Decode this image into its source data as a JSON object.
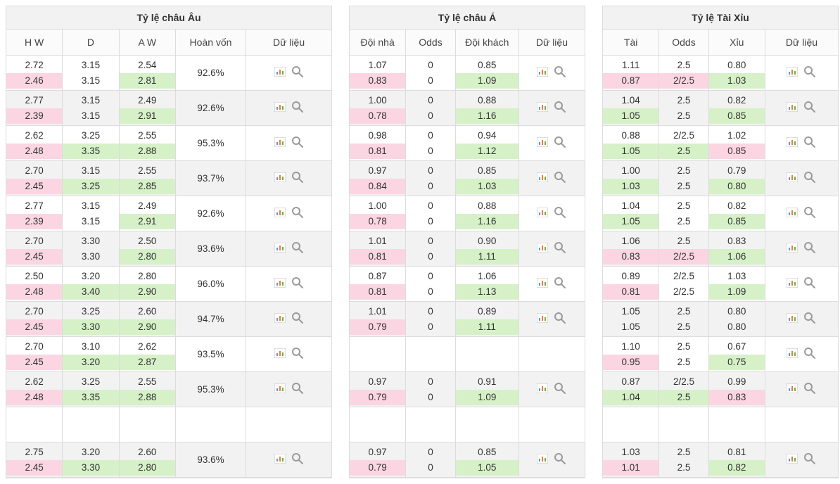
{
  "colors": {
    "border": "#dcdcdc",
    "alt_row": "#f2f2f2",
    "header_bg": "#fbfbfb",
    "text": "#333333",
    "hl_down": "#fbd6e2",
    "hl_up": "#d6f1c8"
  },
  "icons": {
    "chart_name": "chart-icon",
    "search_name": "search-icon"
  },
  "eu": {
    "title": "Tỷ lệ châu Âu",
    "headers": [
      "H W",
      "D",
      "A W",
      "Hoàn vốn",
      "Dữ liệu"
    ],
    "rows": [
      {
        "hw": [
          "2.72",
          "2.46"
        ],
        "hw_hl": [
          "",
          "down"
        ],
        "d": [
          "3.15",
          "3.15"
        ],
        "d_hl": [
          "",
          ""
        ],
        "aw": [
          "2.54",
          "2.81"
        ],
        "aw_hl": [
          "",
          "up"
        ],
        "ret": "92.6%"
      },
      {
        "hw": [
          "2.77",
          "2.39"
        ],
        "hw_hl": [
          "",
          "down"
        ],
        "d": [
          "3.15",
          "3.15"
        ],
        "d_hl": [
          "",
          ""
        ],
        "aw": [
          "2.49",
          "2.91"
        ],
        "aw_hl": [
          "",
          "up"
        ],
        "ret": "92.6%"
      },
      {
        "hw": [
          "2.62",
          "2.48"
        ],
        "hw_hl": [
          "",
          "down"
        ],
        "d": [
          "3.25",
          "3.35"
        ],
        "d_hl": [
          "",
          "up"
        ],
        "aw": [
          "2.55",
          "2.88"
        ],
        "aw_hl": [
          "",
          "up"
        ],
        "ret": "95.3%"
      },
      {
        "hw": [
          "2.70",
          "2.45"
        ],
        "hw_hl": [
          "",
          "down"
        ],
        "d": [
          "3.15",
          "3.25"
        ],
        "d_hl": [
          "",
          "up"
        ],
        "aw": [
          "2.55",
          "2.85"
        ],
        "aw_hl": [
          "",
          "up"
        ],
        "ret": "93.7%"
      },
      {
        "hw": [
          "2.77",
          "2.39"
        ],
        "hw_hl": [
          "",
          "down"
        ],
        "d": [
          "3.15",
          "3.15"
        ],
        "d_hl": [
          "",
          ""
        ],
        "aw": [
          "2.49",
          "2.91"
        ],
        "aw_hl": [
          "",
          "up"
        ],
        "ret": "92.6%"
      },
      {
        "hw": [
          "2.70",
          "2.45"
        ],
        "hw_hl": [
          "",
          "down"
        ],
        "d": [
          "3.30",
          "3.30"
        ],
        "d_hl": [
          "",
          ""
        ],
        "aw": [
          "2.50",
          "2.80"
        ],
        "aw_hl": [
          "",
          "up"
        ],
        "ret": "93.6%"
      },
      {
        "hw": [
          "2.50",
          "2.48"
        ],
        "hw_hl": [
          "",
          "down"
        ],
        "d": [
          "3.20",
          "3.40"
        ],
        "d_hl": [
          "",
          "up"
        ],
        "aw": [
          "2.80",
          "2.90"
        ],
        "aw_hl": [
          "",
          "up"
        ],
        "ret": "96.0%"
      },
      {
        "hw": [
          "2.70",
          "2.45"
        ],
        "hw_hl": [
          "",
          "down"
        ],
        "d": [
          "3.25",
          "3.30"
        ],
        "d_hl": [
          "",
          "up"
        ],
        "aw": [
          "2.60",
          "2.90"
        ],
        "aw_hl": [
          "",
          "up"
        ],
        "ret": "94.7%"
      },
      {
        "hw": [
          "2.70",
          "2.45"
        ],
        "hw_hl": [
          "",
          "down"
        ],
        "d": [
          "3.10",
          "3.20"
        ],
        "d_hl": [
          "",
          "up"
        ],
        "aw": [
          "2.62",
          "2.87"
        ],
        "aw_hl": [
          "",
          "up"
        ],
        "ret": "93.5%"
      },
      {
        "hw": [
          "2.62",
          "2.48"
        ],
        "hw_hl": [
          "",
          "down"
        ],
        "d": [
          "3.25",
          "3.35"
        ],
        "d_hl": [
          "",
          "up"
        ],
        "aw": [
          "2.55",
          "2.88"
        ],
        "aw_hl": [
          "",
          "up"
        ],
        "ret": "95.3%"
      },
      {
        "empty": true
      },
      {
        "hw": [
          "2.75",
          "2.45"
        ],
        "hw_hl": [
          "",
          "down"
        ],
        "d": [
          "3.20",
          "3.30"
        ],
        "d_hl": [
          "",
          "up"
        ],
        "aw": [
          "2.60",
          "2.80"
        ],
        "aw_hl": [
          "",
          "up"
        ],
        "ret": "93.6%"
      }
    ]
  },
  "asia": {
    "title": "Tỷ lệ châu Á",
    "headers": [
      "Đội nhà",
      "Odds",
      "Đội khách",
      "Dữ liệu"
    ],
    "rows": [
      {
        "h": [
          "1.07",
          "0.83"
        ],
        "h_hl": [
          "",
          "down"
        ],
        "o": [
          "0",
          "0"
        ],
        "o_hl": [
          "",
          ""
        ],
        "a": [
          "0.85",
          "1.09"
        ],
        "a_hl": [
          "",
          "up"
        ]
      },
      {
        "h": [
          "1.00",
          "0.78"
        ],
        "h_hl": [
          "",
          "down"
        ],
        "o": [
          "0",
          "0"
        ],
        "o_hl": [
          "",
          ""
        ],
        "a": [
          "0.88",
          "1.16"
        ],
        "a_hl": [
          "",
          "up"
        ]
      },
      {
        "h": [
          "0.98",
          "0.81"
        ],
        "h_hl": [
          "",
          "down"
        ],
        "o": [
          "0",
          "0"
        ],
        "o_hl": [
          "",
          ""
        ],
        "a": [
          "0.94",
          "1.12"
        ],
        "a_hl": [
          "",
          "up"
        ]
      },
      {
        "h": [
          "0.97",
          "0.84"
        ],
        "h_hl": [
          "",
          "down"
        ],
        "o": [
          "0",
          "0"
        ],
        "o_hl": [
          "",
          ""
        ],
        "a": [
          "0.85",
          "1.03"
        ],
        "a_hl": [
          "",
          "up"
        ]
      },
      {
        "h": [
          "1.00",
          "0.78"
        ],
        "h_hl": [
          "",
          "down"
        ],
        "o": [
          "0",
          "0"
        ],
        "o_hl": [
          "",
          ""
        ],
        "a": [
          "0.88",
          "1.16"
        ],
        "a_hl": [
          "",
          "up"
        ]
      },
      {
        "h": [
          "1.01",
          "0.81"
        ],
        "h_hl": [
          "",
          "down"
        ],
        "o": [
          "0",
          "0"
        ],
        "o_hl": [
          "",
          ""
        ],
        "a": [
          "0.90",
          "1.11"
        ],
        "a_hl": [
          "",
          "up"
        ]
      },
      {
        "h": [
          "0.87",
          "0.81"
        ],
        "h_hl": [
          "",
          "down"
        ],
        "o": [
          "0",
          "0"
        ],
        "o_hl": [
          "",
          ""
        ],
        "a": [
          "1.06",
          "1.13"
        ],
        "a_hl": [
          "",
          "up"
        ]
      },
      {
        "h": [
          "1.01",
          "0.79"
        ],
        "h_hl": [
          "",
          "down"
        ],
        "o": [
          "0",
          "0"
        ],
        "o_hl": [
          "",
          ""
        ],
        "a": [
          "0.89",
          "1.11"
        ],
        "a_hl": [
          "",
          "up"
        ]
      },
      {
        "empty": true
      },
      {
        "h": [
          "0.97",
          "0.79"
        ],
        "h_hl": [
          "",
          "down"
        ],
        "o": [
          "0",
          "0"
        ],
        "o_hl": [
          "",
          ""
        ],
        "a": [
          "0.91",
          "1.09"
        ],
        "a_hl": [
          "",
          "up"
        ]
      },
      {
        "empty": true
      },
      {
        "h": [
          "0.97",
          "0.79"
        ],
        "h_hl": [
          "",
          "down"
        ],
        "o": [
          "0",
          "0"
        ],
        "o_hl": [
          "",
          ""
        ],
        "a": [
          "0.85",
          "1.05"
        ],
        "a_hl": [
          "",
          "up"
        ]
      }
    ]
  },
  "ou": {
    "title": "Tỷ lệ Tài Xỉu",
    "headers": [
      "Tài",
      "Odds",
      "Xỉu",
      "Dữ liệu"
    ],
    "rows": [
      {
        "t": [
          "1.11",
          "0.87"
        ],
        "t_hl": [
          "",
          "down"
        ],
        "o": [
          "2.5",
          "2/2.5"
        ],
        "o_hl": [
          "",
          "down"
        ],
        "x": [
          "0.80",
          "1.03"
        ],
        "x_hl": [
          "",
          "up"
        ]
      },
      {
        "t": [
          "1.04",
          "1.05"
        ],
        "t_hl": [
          "",
          "up"
        ],
        "o": [
          "2.5",
          "2.5"
        ],
        "o_hl": [
          "",
          ""
        ],
        "x": [
          "0.82",
          "0.85"
        ],
        "x_hl": [
          "",
          "up"
        ]
      },
      {
        "t": [
          "0.88",
          "1.05"
        ],
        "t_hl": [
          "",
          "up"
        ],
        "o": [
          "2/2.5",
          "2.5"
        ],
        "o_hl": [
          "",
          "up"
        ],
        "x": [
          "1.02",
          "0.85"
        ],
        "x_hl": [
          "",
          "down"
        ]
      },
      {
        "t": [
          "1.00",
          "1.03"
        ],
        "t_hl": [
          "",
          "up"
        ],
        "o": [
          "2.5",
          "2.5"
        ],
        "o_hl": [
          "",
          ""
        ],
        "x": [
          "0.79",
          "0.80"
        ],
        "x_hl": [
          "",
          "up"
        ]
      },
      {
        "t": [
          "1.04",
          "1.05"
        ],
        "t_hl": [
          "",
          "up"
        ],
        "o": [
          "2.5",
          "2.5"
        ],
        "o_hl": [
          "",
          ""
        ],
        "x": [
          "0.82",
          "0.85"
        ],
        "x_hl": [
          "",
          "up"
        ]
      },
      {
        "t": [
          "1.06",
          "0.83"
        ],
        "t_hl": [
          "",
          "down"
        ],
        "o": [
          "2.5",
          "2/2.5"
        ],
        "o_hl": [
          "",
          "down"
        ],
        "x": [
          "0.83",
          "1.06"
        ],
        "x_hl": [
          "",
          "up"
        ]
      },
      {
        "t": [
          "0.89",
          "0.81"
        ],
        "t_hl": [
          "",
          "down"
        ],
        "o": [
          "2/2.5",
          "2/2.5"
        ],
        "o_hl": [
          "",
          ""
        ],
        "x": [
          "1.03",
          "1.09"
        ],
        "x_hl": [
          "",
          "up"
        ]
      },
      {
        "t": [
          "1.05",
          "1.05"
        ],
        "t_hl": [
          "",
          ""
        ],
        "o": [
          "2.5",
          "2.5"
        ],
        "o_hl": [
          "",
          ""
        ],
        "x": [
          "0.80",
          "0.80"
        ],
        "x_hl": [
          "",
          ""
        ]
      },
      {
        "t": [
          "1.10",
          "0.95"
        ],
        "t_hl": [
          "",
          "down"
        ],
        "o": [
          "2.5",
          "2.5"
        ],
        "o_hl": [
          "",
          ""
        ],
        "x": [
          "0.67",
          "0.75"
        ],
        "x_hl": [
          "",
          "up"
        ]
      },
      {
        "t": [
          "0.87",
          "1.04"
        ],
        "t_hl": [
          "",
          "up"
        ],
        "o": [
          "2/2.5",
          "2.5"
        ],
        "o_hl": [
          "",
          "up"
        ],
        "x": [
          "0.99",
          "0.83"
        ],
        "x_hl": [
          "",
          "down"
        ]
      },
      {
        "empty": true
      },
      {
        "t": [
          "1.03",
          "1.01"
        ],
        "t_hl": [
          "",
          "down"
        ],
        "o": [
          "2.5",
          "2.5"
        ],
        "o_hl": [
          "",
          ""
        ],
        "x": [
          "0.81",
          "0.82"
        ],
        "x_hl": [
          "",
          "up"
        ]
      }
    ]
  }
}
